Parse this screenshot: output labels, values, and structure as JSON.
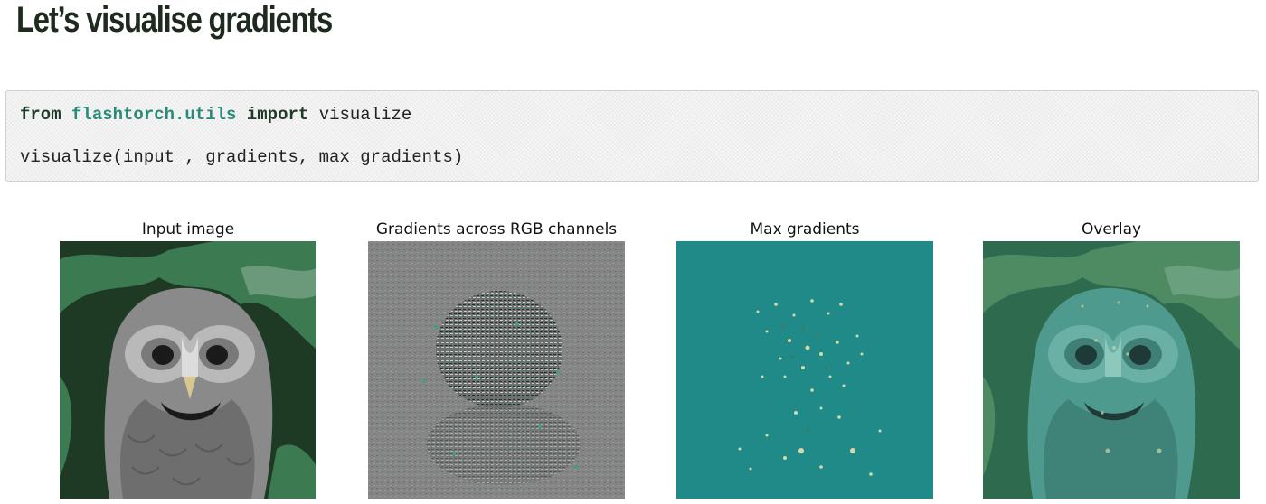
{
  "page": {
    "title": "Let’s visualise gradients"
  },
  "code": {
    "line1": {
      "kw_from": "from",
      "module": "flashtorch.utils",
      "kw_import": "import",
      "name": "visualize"
    },
    "line2": "visualize(input_, gradients, max_gradients)"
  },
  "figure": {
    "panels": [
      {
        "title": "Input image"
      },
      {
        "title": "Gradients across RGB channels"
      },
      {
        "title": "Max gradients"
      },
      {
        "title": "Overlay"
      }
    ]
  },
  "colors": {
    "teal": "#208a88",
    "dark_green": "#1e3a24",
    "forest": "#3c7a52",
    "gray": "#8a8a8a"
  }
}
